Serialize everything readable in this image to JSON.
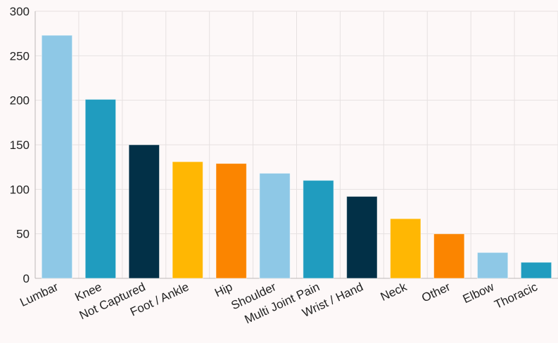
{
  "chart_data": {
    "type": "bar",
    "title": "",
    "xlabel": "",
    "ylabel": "",
    "ylim": [
      0,
      300
    ],
    "yticks": [
      0,
      50,
      100,
      150,
      200,
      250,
      300
    ],
    "grid": true,
    "categories": [
      "Lumbar",
      "Knee",
      "Not Captured",
      "Foot / Ankle",
      "Hip",
      "Shoulder",
      "Multi Joint Pain",
      "Wrist / Hand",
      "Neck",
      "Other",
      "Elbow",
      "Thoracic"
    ],
    "values": [
      273,
      201,
      150,
      131,
      129,
      118,
      110,
      92,
      67,
      50,
      29,
      18
    ],
    "colors": [
      "#8ec8e6",
      "#209cbf",
      "#023047",
      "#ffb703",
      "#fb8500",
      "#8ec8e6",
      "#209cbf",
      "#023047",
      "#ffb703",
      "#fb8500",
      "#8ec8e6",
      "#209cbf"
    ]
  }
}
